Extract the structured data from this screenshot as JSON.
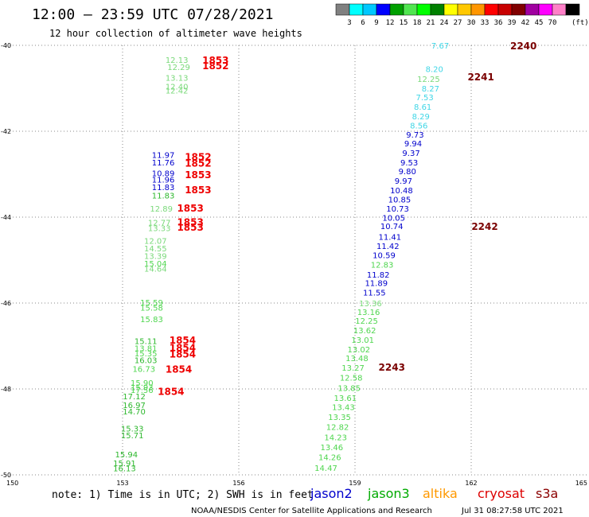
{
  "header": {
    "title": "12:00 — 23:59 UTC 07/28/2021",
    "subtitle": "12 hour collection of altimeter wave heights"
  },
  "colorbar": {
    "labels": [
      "3",
      "6",
      "9",
      "12",
      "15",
      "18",
      "21",
      "24",
      "27",
      "30",
      "33",
      "36",
      "39",
      "42",
      "45",
      "70"
    ],
    "unit": "(ft)",
    "colors": [
      "#808080",
      "#00ffff",
      "#00c8ff",
      "#0000ff",
      "#00a000",
      "#50e650",
      "#00ff00",
      "#008000",
      "#ffff00",
      "#ffc800",
      "#ff9600",
      "#ff0000",
      "#c80000",
      "#800000",
      "#a000a0",
      "#ff00ff",
      "#ff80c8",
      "#000000"
    ]
  },
  "footer": {
    "note": "note: 1) Time is in UTC; 2) SWH is in feet",
    "credit": "NOAA/NESDIS Center for Satellite Applications and Research",
    "timestamp": "Jul 31 08:27:58 UTC 2021"
  },
  "legend": [
    {
      "name": "jason2",
      "color": "#0000cc"
    },
    {
      "name": "jason3",
      "color": "#00aa00"
    },
    {
      "name": "altika",
      "color": "#ff9900"
    },
    {
      "name": "cryosat",
      "color": "#dd0000"
    },
    {
      "name": "s3a",
      "color": "#8b0000"
    }
  ],
  "chart_data": {
    "type": "scatter",
    "xlim": [
      150,
      165
    ],
    "ylim": [
      -50,
      -40
    ],
    "x_ticks": [
      "150",
      "153",
      "156",
      "159",
      "162",
      "165"
    ],
    "y_ticks": [
      "-40",
      "-42",
      "-44",
      "-46",
      "-48",
      "-50"
    ],
    "grid": true,
    "colors": {
      "c1": "#3fd6e6",
      "c2": "#16a9d6",
      "c3": "#0000cc",
      "c4": "#7ad97a",
      "c5": "#4fd64f",
      "c6": "#2eb82e",
      "cryosat": "#ee0000",
      "s3a": "#7a0000"
    },
    "points": [
      {
        "x": 161.05,
        "y": -40.55,
        "v": "8.20",
        "c": "c1"
      },
      {
        "x": 161.2,
        "y": -40.0,
        "v": "7.67",
        "c": "c1"
      },
      {
        "x": 160.9,
        "y": -40.78,
        "v": "12.25",
        "c": "c4"
      },
      {
        "x": 160.95,
        "y": -41.0,
        "v": "8.27",
        "c": "c1"
      },
      {
        "x": 160.8,
        "y": -41.2,
        "v": "7.53",
        "c": "c1"
      },
      {
        "x": 160.75,
        "y": -41.43,
        "v": "8.61",
        "c": "c1"
      },
      {
        "x": 160.7,
        "y": -41.65,
        "v": "8.29",
        "c": "c1"
      },
      {
        "x": 160.65,
        "y": -41.86,
        "v": "8.56",
        "c": "c1"
      },
      {
        "x": 160.55,
        "y": -42.07,
        "v": "9.73",
        "c": "c3"
      },
      {
        "x": 160.5,
        "y": -42.28,
        "v": "9.94",
        "c": "c3"
      },
      {
        "x": 160.45,
        "y": -42.5,
        "v": "9.37",
        "c": "c3"
      },
      {
        "x": 160.4,
        "y": -42.72,
        "v": "9.53",
        "c": "c3"
      },
      {
        "x": 160.35,
        "y": -42.93,
        "v": "9.80",
        "c": "c3"
      },
      {
        "x": 160.25,
        "y": -43.15,
        "v": "9.97",
        "c": "c3"
      },
      {
        "x": 160.2,
        "y": -43.37,
        "v": "10.48",
        "c": "c3"
      },
      {
        "x": 160.15,
        "y": -43.58,
        "v": "10.85",
        "c": "c3"
      },
      {
        "x": 160.1,
        "y": -43.8,
        "v": "10.73",
        "c": "c3"
      },
      {
        "x": 160.0,
        "y": -44.01,
        "v": "10.05",
        "c": "c3"
      },
      {
        "x": 159.95,
        "y": -44.2,
        "v": "10.74",
        "c": "c3"
      },
      {
        "x": 159.9,
        "y": -44.45,
        "v": "11.41",
        "c": "c3"
      },
      {
        "x": 159.85,
        "y": -44.67,
        "v": "11.42",
        "c": "c3"
      },
      {
        "x": 159.75,
        "y": -44.88,
        "v": "10.59",
        "c": "c3"
      },
      {
        "x": 159.7,
        "y": -45.1,
        "v": "12.83",
        "c": "c5"
      },
      {
        "x": 159.6,
        "y": -45.33,
        "v": "11.82",
        "c": "c3"
      },
      {
        "x": 159.55,
        "y": -45.53,
        "v": "11.89",
        "c": "c3"
      },
      {
        "x": 159.5,
        "y": -45.75,
        "v": "11.55",
        "c": "c3"
      },
      {
        "x": 159.4,
        "y": -46.0,
        "v": "13.36",
        "c": "c4"
      },
      {
        "x": 159.35,
        "y": -46.2,
        "v": "13.16",
        "c": "c5"
      },
      {
        "x": 159.3,
        "y": -46.41,
        "v": "12.25",
        "c": "c5"
      },
      {
        "x": 159.25,
        "y": -46.63,
        "v": "13.62",
        "c": "c5"
      },
      {
        "x": 159.2,
        "y": -46.85,
        "v": "13.01",
        "c": "c5"
      },
      {
        "x": 159.1,
        "y": -47.07,
        "v": "13.02",
        "c": "c5"
      },
      {
        "x": 159.05,
        "y": -47.28,
        "v": "13.48",
        "c": "c5"
      },
      {
        "x": 158.95,
        "y": -47.5,
        "v": "13.27",
        "c": "c5"
      },
      {
        "x": 158.9,
        "y": -47.73,
        "v": "12.58",
        "c": "c5"
      },
      {
        "x": 158.85,
        "y": -47.97,
        "v": "13.85",
        "c": "c5"
      },
      {
        "x": 158.75,
        "y": -48.2,
        "v": "13.61",
        "c": "c5"
      },
      {
        "x": 158.7,
        "y": -48.42,
        "v": "13.43",
        "c": "c5"
      },
      {
        "x": 158.6,
        "y": -48.65,
        "v": "13.35",
        "c": "c5"
      },
      {
        "x": 158.55,
        "y": -48.88,
        "v": "12.82",
        "c": "c5"
      },
      {
        "x": 158.5,
        "y": -49.12,
        "v": "14.23",
        "c": "c5"
      },
      {
        "x": 158.4,
        "y": -49.35,
        "v": "13.46",
        "c": "c5"
      },
      {
        "x": 158.35,
        "y": -49.58,
        "v": "14.26",
        "c": "c5"
      },
      {
        "x": 158.25,
        "y": -49.83,
        "v": "14.47",
        "c": "c5"
      },
      {
        "x": 154.4,
        "y": -40.33,
        "v": "12.13",
        "c": "c4"
      },
      {
        "x": 154.45,
        "y": -40.5,
        "v": "12.29",
        "c": "c4"
      },
      {
        "x": 154.4,
        "y": -40.75,
        "v": "13.13",
        "c": "c4"
      },
      {
        "x": 154.4,
        "y": -40.95,
        "v": "12.40",
        "c": "c4"
      },
      {
        "x": 154.4,
        "y": -41.05,
        "v": "12.42",
        "c": "c4"
      },
      {
        "x": 154.05,
        "y": -42.55,
        "v": "11.97",
        "c": "c3"
      },
      {
        "x": 154.05,
        "y": -42.72,
        "v": "11.76",
        "c": "c3"
      },
      {
        "x": 154.05,
        "y": -42.97,
        "v": "10.89",
        "c": "c3"
      },
      {
        "x": 154.05,
        "y": -43.12,
        "v": "11.96",
        "c": "c3"
      },
      {
        "x": 154.05,
        "y": -43.3,
        "v": "11.83",
        "c": "c3"
      },
      {
        "x": 154.05,
        "y": -43.49,
        "v": "11.83",
        "c": "c6"
      },
      {
        "x": 154.0,
        "y": -43.8,
        "v": "12.89",
        "c": "c4"
      },
      {
        "x": 153.95,
        "y": -44.12,
        "v": "12.77",
        "c": "c4"
      },
      {
        "x": 153.95,
        "y": -44.25,
        "v": "13.33",
        "c": "c4"
      },
      {
        "x": 153.85,
        "y": -44.55,
        "v": "12.07",
        "c": "c4"
      },
      {
        "x": 153.85,
        "y": -44.72,
        "v": "14.55",
        "c": "c4"
      },
      {
        "x": 153.85,
        "y": -44.9,
        "v": "13.39",
        "c": "c4"
      },
      {
        "x": 153.85,
        "y": -45.07,
        "v": "15.04",
        "c": "c5"
      },
      {
        "x": 153.85,
        "y": -45.19,
        "v": "14.64",
        "c": "c4"
      },
      {
        "x": 153.75,
        "y": -45.98,
        "v": "15.59",
        "c": "c5"
      },
      {
        "x": 153.75,
        "y": -46.1,
        "v": "15.58",
        "c": "c5"
      },
      {
        "x": 153.75,
        "y": -46.37,
        "v": "15.83",
        "c": "c5"
      },
      {
        "x": 153.6,
        "y": -46.88,
        "v": "15.11",
        "c": "c6"
      },
      {
        "x": 153.6,
        "y": -47.05,
        "v": "13.81",
        "c": "c5"
      },
      {
        "x": 153.6,
        "y": -47.17,
        "v": "15.35",
        "c": "c5"
      },
      {
        "x": 153.6,
        "y": -47.32,
        "v": "16.03",
        "c": "c6"
      },
      {
        "x": 153.55,
        "y": -47.53,
        "v": "16.73",
        "c": "c5"
      },
      {
        "x": 153.5,
        "y": -47.85,
        "v": "15.90",
        "c": "c5"
      },
      {
        "x": 153.5,
        "y": -47.95,
        "v": "15.93",
        "c": "c5"
      },
      {
        "x": 153.5,
        "y": -48.02,
        "v": "17.56",
        "c": "c5"
      },
      {
        "x": 153.3,
        "y": -48.17,
        "v": "17.12",
        "c": "c6"
      },
      {
        "x": 153.3,
        "y": -48.37,
        "v": "16.97",
        "c": "c6"
      },
      {
        "x": 153.3,
        "y": -48.52,
        "v": "14.70",
        "c": "c6"
      },
      {
        "x": 153.25,
        "y": -48.92,
        "v": "15.33",
        "c": "c6"
      },
      {
        "x": 153.25,
        "y": -49.07,
        "v": "15.71",
        "c": "c6"
      },
      {
        "x": 153.1,
        "y": -49.52,
        "v": "15.94",
        "c": "c6"
      },
      {
        "x": 153.05,
        "y": -49.72,
        "v": "15.91",
        "c": "c6"
      },
      {
        "x": 153.05,
        "y": -49.84,
        "v": "16.13",
        "c": "c6"
      }
    ],
    "labels": [
      {
        "x": 155.4,
        "y": -40.33,
        "v": "1853",
        "c": "cryosat"
      },
      {
        "x": 155.4,
        "y": -40.46,
        "v": "1852",
        "c": "cryosat"
      },
      {
        "x": 154.95,
        "y": -42.58,
        "v": "1852",
        "c": "cryosat"
      },
      {
        "x": 154.95,
        "y": -42.73,
        "v": "1852",
        "c": "cryosat"
      },
      {
        "x": 154.95,
        "y": -43.0,
        "v": "1853",
        "c": "cryosat"
      },
      {
        "x": 154.95,
        "y": -43.35,
        "v": "1853",
        "c": "cryosat"
      },
      {
        "x": 154.75,
        "y": -43.78,
        "v": "1853",
        "c": "cryosat"
      },
      {
        "x": 154.75,
        "y": -44.1,
        "v": "1853",
        "c": "cryosat"
      },
      {
        "x": 154.75,
        "y": -44.22,
        "v": "1853",
        "c": "cryosat"
      },
      {
        "x": 154.55,
        "y": -46.85,
        "v": "1854",
        "c": "cryosat"
      },
      {
        "x": 154.55,
        "y": -47.03,
        "v": "1854",
        "c": "cryosat"
      },
      {
        "x": 154.55,
        "y": -47.18,
        "v": "1854",
        "c": "cryosat"
      },
      {
        "x": 154.45,
        "y": -47.53,
        "v": "1854",
        "c": "cryosat"
      },
      {
        "x": 154.25,
        "y": -48.05,
        "v": "1854",
        "c": "cryosat"
      },
      {
        "x": 163.35,
        "y": -40.0,
        "v": "2240",
        "c": "s3a"
      },
      {
        "x": 162.25,
        "y": -40.72,
        "v": "2241",
        "c": "s3a"
      },
      {
        "x": 162.35,
        "y": -44.2,
        "v": "2242",
        "c": "s3a"
      },
      {
        "x": 159.95,
        "y": -47.48,
        "v": "2243",
        "c": "s3a"
      }
    ]
  }
}
